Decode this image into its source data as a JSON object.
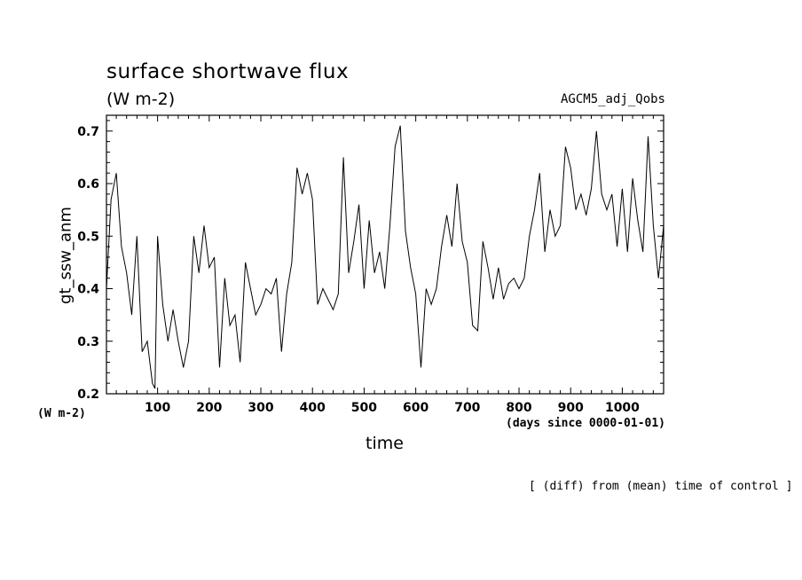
{
  "title": "surface shortwave flux",
  "units": "(W m-2)",
  "run_label": "AGCM5_adj_Qobs",
  "y_units": "(W m-2)",
  "x_units": "(days since 0000-01-01)",
  "note": "[ (diff) from (mean) time of control ]",
  "colors": {
    "line": "#000000",
    "background": "#ffffff"
  },
  "chart_data": {
    "type": "line",
    "title": "surface shortwave flux",
    "xlabel": "time",
    "ylabel": "gt_ssw_anm",
    "xlim": [
      1,
      1080
    ],
    "ylim": [
      0.2,
      0.73
    ],
    "x_ticks": [
      100,
      200,
      300,
      400,
      500,
      600,
      700,
      800,
      900,
      1000
    ],
    "y_ticks": [
      0.2,
      0.3,
      0.4,
      0.5,
      0.6,
      0.7
    ],
    "x_tick_labels": [
      "100",
      "200",
      "300",
      "400",
      "500",
      "600",
      "700",
      "800",
      "900",
      "1000"
    ],
    "y_tick_labels": [
      "0.2",
      "0.3",
      "0.4",
      "0.5",
      "0.6",
      "0.7"
    ],
    "grid": false,
    "series": [
      {
        "x": [
          1,
          10,
          20,
          30,
          40,
          50,
          60,
          70,
          80,
          90,
          95,
          100,
          110,
          120,
          130,
          140,
          150,
          160,
          170,
          180,
          190,
          200,
          210,
          220,
          230,
          240,
          250,
          260,
          270,
          280,
          290,
          300,
          310,
          320,
          330,
          340,
          350,
          360,
          370,
          380,
          390,
          400,
          410,
          420,
          430,
          440,
          450,
          460,
          470,
          480,
          490,
          500,
          510,
          520,
          530,
          540,
          550,
          560,
          570,
          580,
          590,
          600,
          610,
          620,
          630,
          640,
          650,
          660,
          670,
          680,
          690,
          700,
          710,
          720,
          730,
          740,
          750,
          760,
          770,
          780,
          790,
          800,
          810,
          820,
          830,
          840,
          850,
          860,
          870,
          880,
          890,
          900,
          910,
          920,
          930,
          940,
          950,
          960,
          970,
          980,
          990,
          1000,
          1010,
          1020,
          1030,
          1040,
          1050,
          1060,
          1070,
          1080
        ],
        "y": [
          0.4,
          0.57,
          0.62,
          0.48,
          0.43,
          0.35,
          0.5,
          0.28,
          0.3,
          0.22,
          0.21,
          0.5,
          0.37,
          0.3,
          0.36,
          0.3,
          0.25,
          0.3,
          0.5,
          0.43,
          0.52,
          0.44,
          0.46,
          0.25,
          0.42,
          0.33,
          0.35,
          0.26,
          0.45,
          0.4,
          0.35,
          0.37,
          0.4,
          0.39,
          0.42,
          0.28,
          0.39,
          0.45,
          0.63,
          0.58,
          0.62,
          0.57,
          0.37,
          0.4,
          0.38,
          0.36,
          0.39,
          0.65,
          0.43,
          0.49,
          0.56,
          0.4,
          0.53,
          0.43,
          0.47,
          0.4,
          0.52,
          0.67,
          0.71,
          0.51,
          0.44,
          0.39,
          0.25,
          0.4,
          0.37,
          0.4,
          0.48,
          0.54,
          0.48,
          0.6,
          0.49,
          0.45,
          0.33,
          0.32,
          0.49,
          0.44,
          0.38,
          0.44,
          0.38,
          0.41,
          0.42,
          0.4,
          0.42,
          0.5,
          0.55,
          0.62,
          0.47,
          0.55,
          0.5,
          0.52,
          0.67,
          0.63,
          0.55,
          0.58,
          0.54,
          0.59,
          0.7,
          0.58,
          0.55,
          0.58,
          0.48,
          0.59,
          0.47,
          0.61,
          0.53,
          0.47,
          0.69,
          0.52,
          0.42,
          0.52
        ]
      }
    ]
  }
}
